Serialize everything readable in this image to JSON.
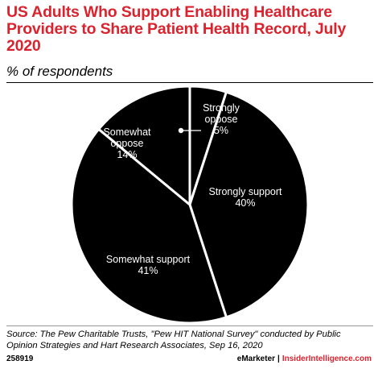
{
  "header": {
    "title": "US Adults Who Support Enabling Healthcare Providers to Share Patient Health Record, July 2020",
    "subtitle": "% of respondents"
  },
  "chart_data": {
    "type": "pie",
    "title": "US Adults Who Support Enabling Healthcare Providers to Share Patient Health Record, July 2020",
    "subtitle": "% of respondents",
    "slices": [
      {
        "label_lines": [
          "Strongly",
          "oppose",
          "5%"
        ],
        "name": "Strongly oppose",
        "value": 5,
        "color": "#000000",
        "label_color": "#ffffff"
      },
      {
        "label_lines": [
          "Strongly support",
          "40%"
        ],
        "name": "Strongly support",
        "value": 40,
        "color": "#000000",
        "label_color": "#ffffff"
      },
      {
        "label_lines": [
          "Somewhat support",
          "41%"
        ],
        "name": "Somewhat support",
        "value": 41,
        "color": "#000000",
        "label_color": "#ffffff"
      },
      {
        "label_lines": [
          "Somewhat",
          "oppose",
          "14%"
        ],
        "name": "Somewhat oppose",
        "value": 14,
        "color": "#000000",
        "label_color": "#ffffff"
      }
    ],
    "slice_border_color": "#ffffff",
    "start_angle_deg": 0,
    "direction": "clockwise"
  },
  "footer": {
    "source": "Source: The Pew Charitable Trusts, \"Pew HIT National Survey\" conducted by Public Opinion Strategies and Hart Research Associates, Sep 16, 2020",
    "chart_id": "258919",
    "brand_emarketer": "eMarketer",
    "brand_separator": "|",
    "brand_insider": "InsiderIntelligence.com",
    "accent_color": "#d9232e"
  }
}
